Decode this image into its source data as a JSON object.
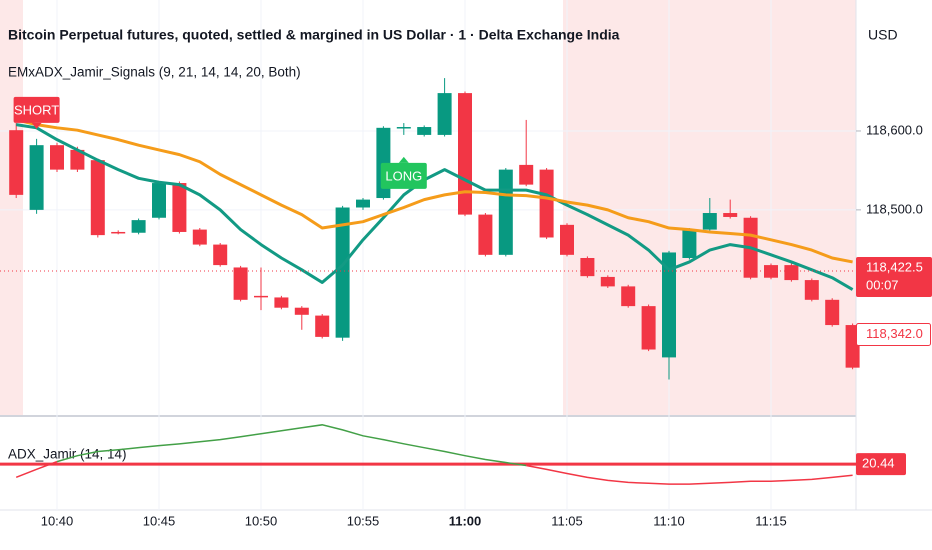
{
  "header": {
    "title": "Bitcoin Perpetual futures, quoted, settled & margined in US Dollar · 1 · Delta Exchange India",
    "indicator": "EMxADX_Jamir_Signals (9, 21, 14, 14, 20, Both)",
    "currency": "USD"
  },
  "chart_data": [
    {
      "type": "candlestick",
      "categories": [
        null,
        null,
        "10:40",
        null,
        null,
        null,
        null,
        "10:45",
        null,
        null,
        null,
        null,
        "10:50",
        null,
        null,
        null,
        null,
        "10:55",
        null,
        null,
        null,
        null,
        "11:00",
        null,
        null,
        null,
        null,
        "11:05",
        null,
        null,
        null,
        null,
        "11:10",
        null,
        null,
        null,
        null,
        "11:15",
        null,
        null,
        null,
        null
      ],
      "bold_categories": [
        "11:00"
      ],
      "open": [
        118601,
        118500,
        118582,
        118576,
        118563,
        118472,
        118471,
        118490,
        118534,
        118475,
        118456,
        118427,
        118391,
        118389,
        118376,
        118366,
        118338,
        118503,
        118515,
        118604,
        118595,
        118595,
        118648,
        118494,
        118443,
        118557,
        118551,
        118481,
        118439,
        118415,
        118403,
        118378,
        118313,
        118439,
        118475,
        118496,
        118490,
        118430,
        118430,
        118411,
        118386,
        118354
      ],
      "high": [
        118610,
        118590,
        118585,
        118580,
        118565,
        118474,
        118489,
        118536,
        118536,
        118477,
        118458,
        118429,
        118427,
        118391,
        118378,
        118368,
        118505,
        118515,
        118606,
        118610,
        118607,
        118667,
        118650,
        118496,
        118553,
        118614,
        118553,
        118483,
        118441,
        118417,
        118405,
        118380,
        118448,
        118477,
        118515,
        118513,
        118492,
        118432,
        118432,
        118413,
        118388,
        118356
      ],
      "low": [
        118515,
        118495,
        118548,
        118548,
        118465,
        118469,
        118469,
        118488,
        118470,
        118454,
        118428,
        118384,
        118373,
        118374,
        118348,
        118337,
        118334,
        118500,
        118513,
        118595,
        118593,
        118593,
        118492,
        118441,
        118441,
        118530,
        118463,
        118441,
        118414,
        118401,
        118376,
        118321,
        118285,
        118437,
        118473,
        118489,
        118412,
        118412,
        118409,
        118384,
        118352,
        118298
      ],
      "close": [
        118519,
        118582,
        118551,
        118551,
        118468,
        118471,
        118487,
        118534,
        118472,
        118456,
        118430,
        118386,
        118390,
        118376,
        118367,
        118339,
        118503,
        118513,
        118604,
        118605,
        118605,
        118648,
        118494,
        118443,
        118551,
        118532,
        118465,
        118443,
        118416,
        118403,
        118378,
        118323,
        118446,
        118475,
        118496,
        118491,
        118414,
        118414,
        118411,
        118386,
        118354,
        118300
      ],
      "up_color": "#089981",
      "down_color": "#f23645",
      "lines": [
        {
          "color": "#129a84",
          "values": [
            118608,
            118604,
            118589,
            118576,
            118563,
            118551,
            118540,
            118535,
            118532,
            118519,
            118500,
            118475,
            118456,
            118439,
            118424,
            118408,
            118430,
            118462,
            118490,
            118519,
            118538,
            118551,
            118538,
            118525,
            118525,
            118525,
            118519,
            118506,
            118494,
            118481,
            118468,
            118449,
            118424,
            118434,
            118449,
            118456,
            118452,
            118443,
            118434,
            118424,
            118414,
            118399
          ]
        },
        {
          "color": "#f59c1a",
          "values": [
            118614,
            118608,
            118604,
            118601,
            118595,
            118589,
            118582,
            118576,
            118570,
            118561,
            118545,
            118532,
            118519,
            118506,
            118494,
            118477,
            118481,
            118485,
            118494,
            118503,
            118513,
            118519,
            118523,
            118522,
            118519,
            118518,
            118515,
            118510,
            118506,
            118500,
            118490,
            118485,
            118477,
            118475,
            118472,
            118470,
            118468,
            118462,
            118456,
            118449,
            118439,
            118434
          ]
        }
      ],
      "signals": [
        null,
        {
          "text": "SHORT",
          "color": "#f23645",
          "side": "above"
        },
        null,
        null,
        null,
        null,
        null,
        null,
        null,
        null,
        null,
        null,
        null,
        null,
        null,
        null,
        null,
        null,
        null,
        {
          "text": "LONG",
          "color": "#22c55e",
          "side": "below"
        },
        null,
        null,
        null,
        null,
        null,
        null,
        null,
        null,
        null,
        null,
        null,
        null,
        null,
        null,
        null,
        null,
        null,
        null,
        null,
        null,
        null,
        null
      ],
      "ylim": [
        118240,
        118766
      ],
      "yticks": [
        {
          "value": 118500,
          "label": "118,500.0"
        },
        {
          "value": 118600,
          "label": "118,600.0"
        }
      ],
      "current_price": {
        "value": 118422.5,
        "label": "118,422.5"
      },
      "countdown": "00:07",
      "marker_price": {
        "value": 118342,
        "label": "118,342.0"
      }
    },
    {
      "type": "line",
      "title": "ADX_Jamir (14, 14)",
      "values": [
        16.0,
        18.7,
        21.3,
        23.3,
        24.7,
        25.3,
        26.0,
        26.7,
        27.3,
        28.0,
        28.7,
        29.7,
        30.7,
        31.7,
        32.7,
        33.7,
        32.0,
        30.0,
        28.7,
        27.3,
        26.0,
        24.7,
        23.3,
        22.0,
        21.0,
        20.0,
        18.7,
        17.3,
        16.0,
        15.0,
        14.3,
        14.0,
        13.7,
        13.7,
        14.0,
        14.3,
        14.7,
        14.7,
        15.0,
        15.3,
        16.0,
        16.7
      ],
      "above_color": "#43a047",
      "below_color": "#f23645",
      "level": {
        "value": 20.44,
        "label": "20.44"
      },
      "ylim": [
        5,
        36
      ]
    }
  ]
}
